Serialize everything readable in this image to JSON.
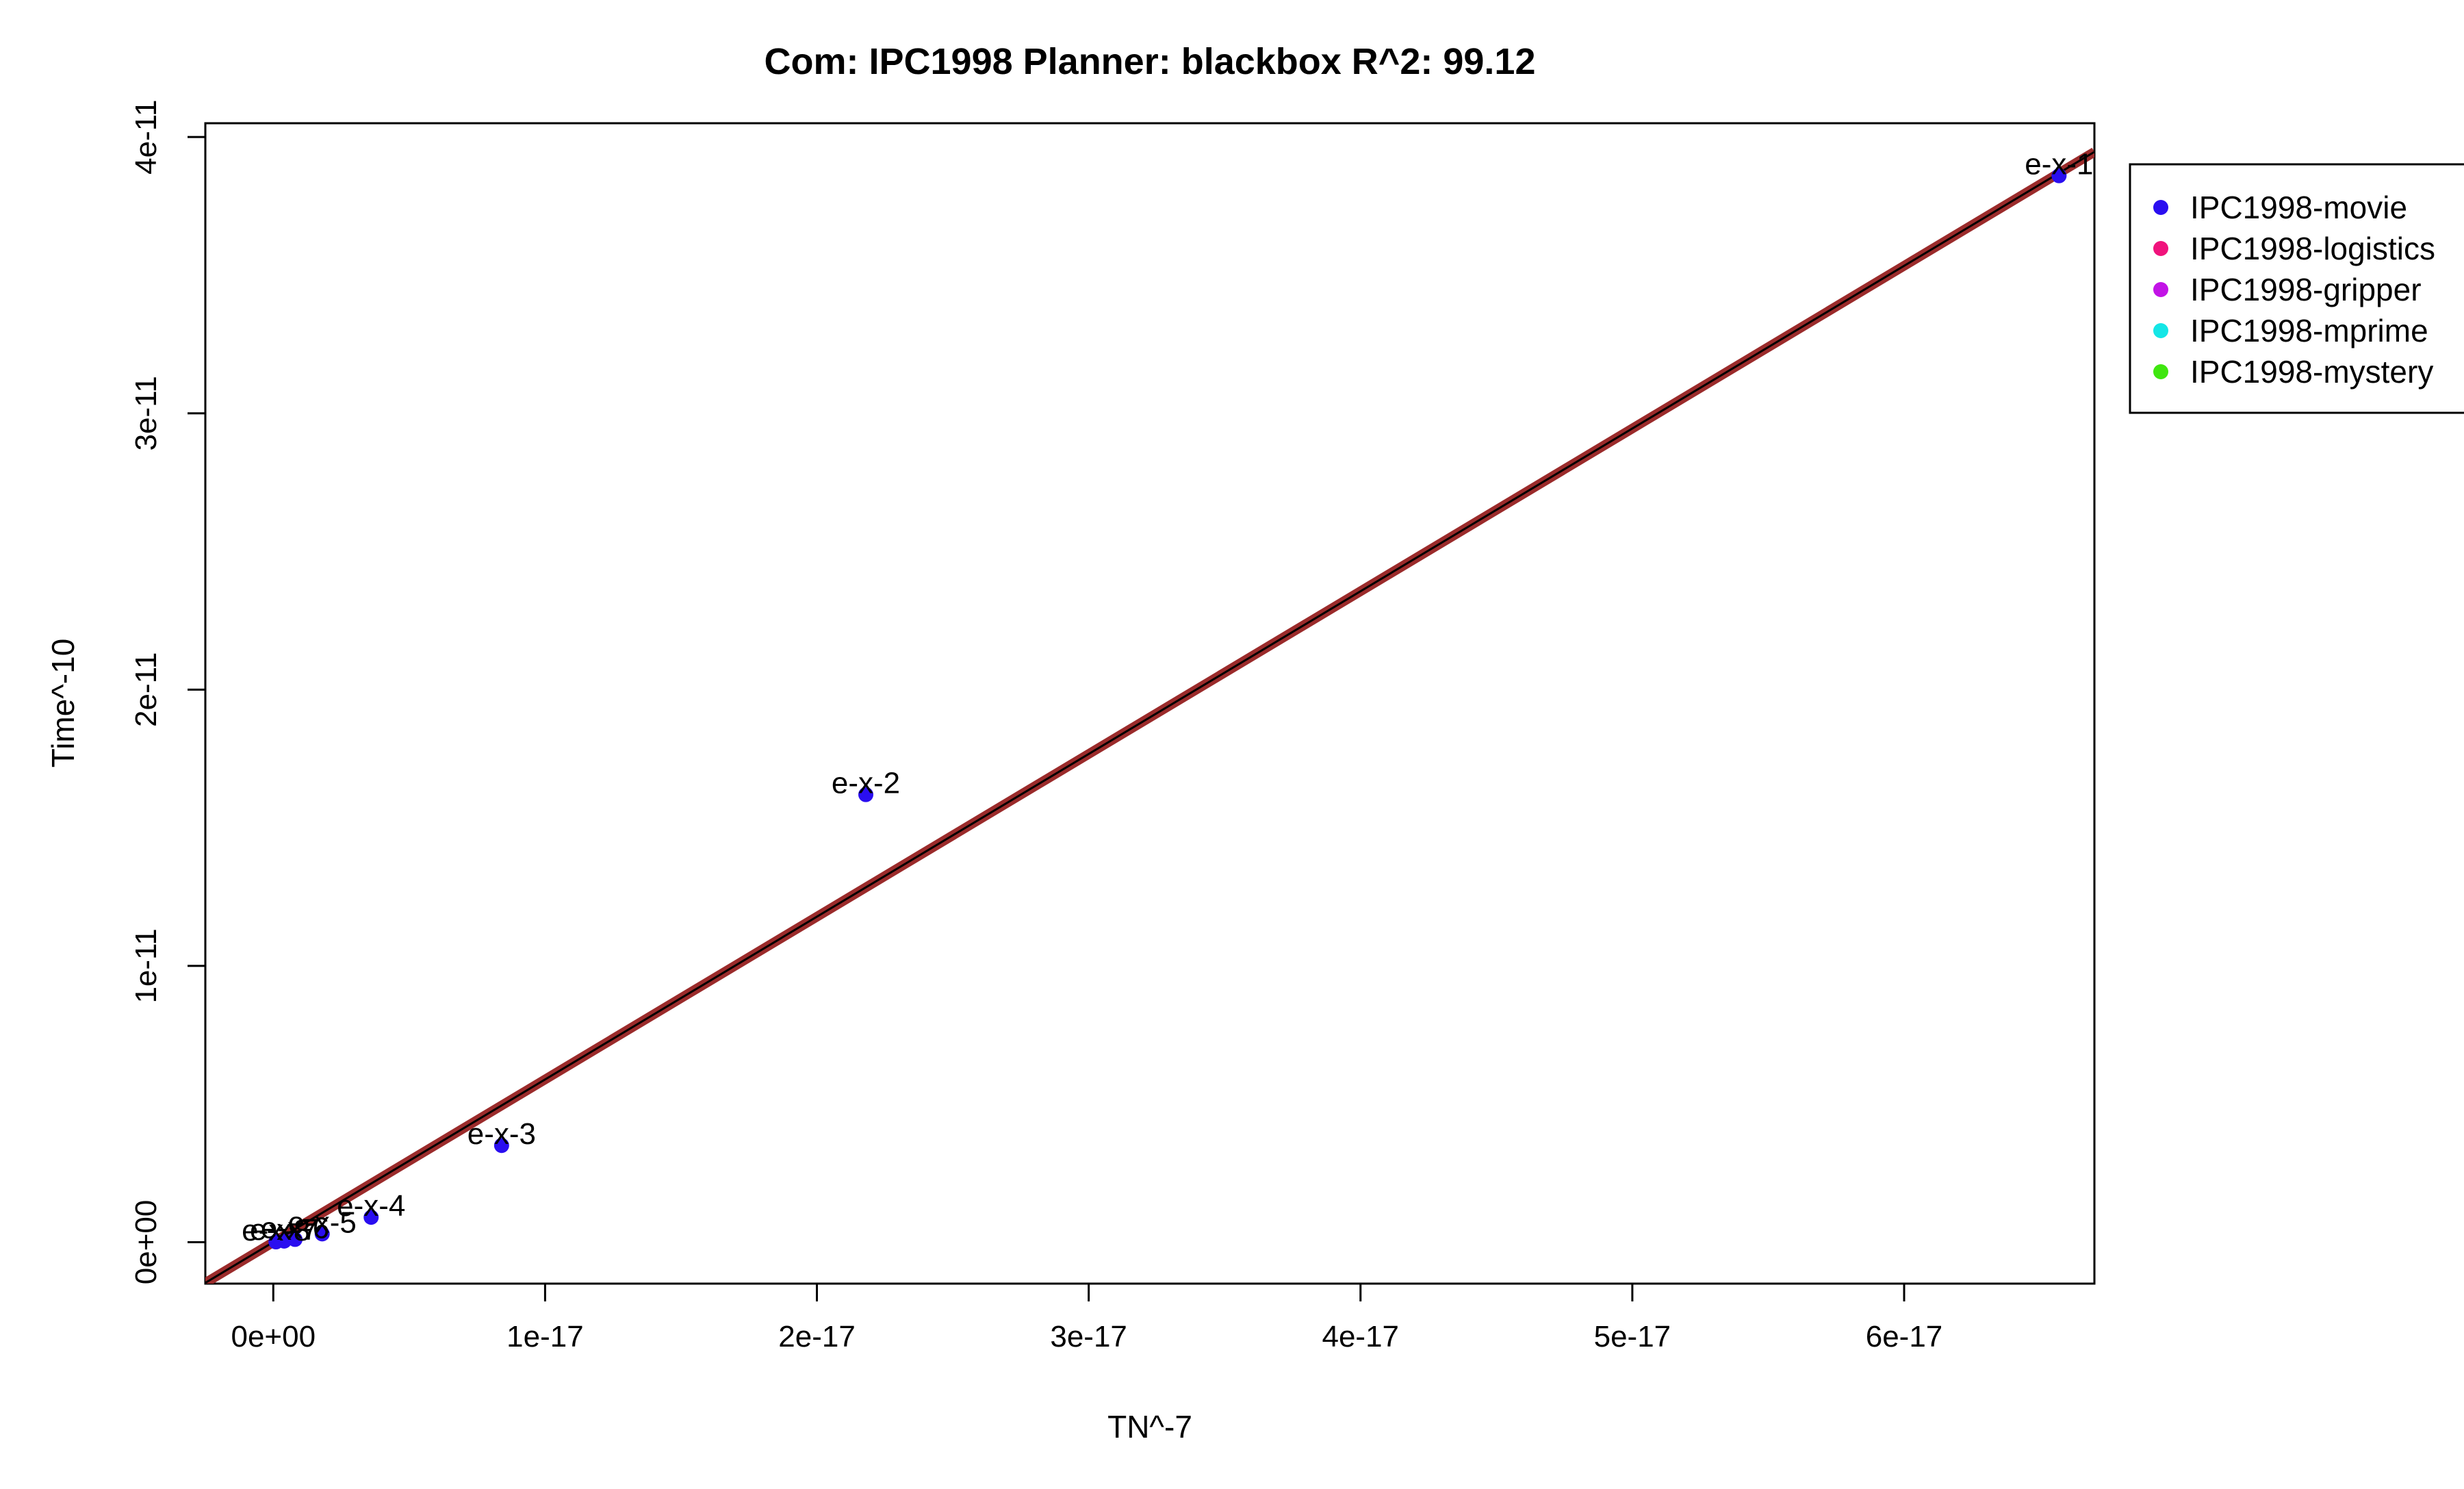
{
  "chart_data": {
    "type": "scatter",
    "title": "Com: IPC1998 Planner: blackbox R^2: 99.12",
    "xlabel": "TN^-7",
    "ylabel": "Time^-10",
    "xlim": [
      -2.5e-18,
      6.7e-17
    ],
    "ylim": [
      -1.5e-12,
      4.05e-11
    ],
    "x_ticks": [
      0,
      1e-17,
      2e-17,
      3e-17,
      4e-17,
      5e-17,
      6e-17
    ],
    "x_tick_labels": [
      "0e+00",
      "1e-17",
      "2e-17",
      "3e-17",
      "4e-17",
      "5e-17",
      "6e-17"
    ],
    "y_ticks": [
      0,
      1e-11,
      2e-11,
      3e-11,
      4e-11
    ],
    "y_tick_labels": [
      "0e+00",
      "1e-11",
      "2e-11",
      "3e-11",
      "4e-11"
    ],
    "grid": false,
    "legend_position": "top-right, outside plot area",
    "series": [
      {
        "name": "IPC1998-movie",
        "color": "#2a0ef0",
        "points": [
          {
            "x": 6.57e-17,
            "y": 3.86e-11,
            "label": "e-x-1"
          },
          {
            "x": 2.18e-17,
            "y": 1.62e-11,
            "label": "e-x-2"
          },
          {
            "x": 8.4e-18,
            "y": 3.5e-12,
            "label": "e-x-3"
          },
          {
            "x": 3.6e-18,
            "y": 9e-13,
            "label": "e-x-4"
          },
          {
            "x": 1.8e-18,
            "y": 3e-13,
            "label": "e-x-5"
          },
          {
            "x": 8e-19,
            "y": 1e-13,
            "label": "e-x-6"
          },
          {
            "x": 4e-19,
            "y": 4e-14,
            "label": "e-x-7"
          },
          {
            "x": 1e-19,
            "y": 1e-14,
            "label": "e-x-8"
          }
        ]
      },
      {
        "name": "IPC1998-logistics",
        "color": "#f0137c",
        "points": []
      },
      {
        "name": "IPC1998-gripper",
        "color": "#c213e6",
        "points": []
      },
      {
        "name": "IPC1998-mprime",
        "color": "#14e6e6",
        "points": []
      },
      {
        "name": "IPC1998-mystery",
        "color": "#3fe60f",
        "points": []
      }
    ],
    "fit_line": {
      "color": "#9b2b2b",
      "inner_color": "#000000",
      "slope": 589000,
      "intercept": 0
    }
  }
}
